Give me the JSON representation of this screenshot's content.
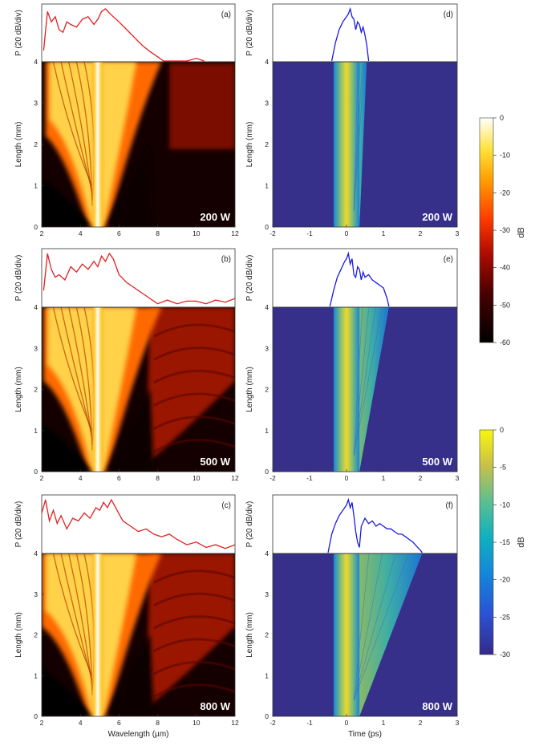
{
  "figure": {
    "colorbars": [
      {
        "label": "dB",
        "ticks": [
          "0",
          "-10",
          "-20",
          "-30",
          "-40",
          "-50",
          "-60"
        ],
        "colormap": "hot"
      },
      {
        "label": "dB",
        "ticks": [
          "0",
          "-5",
          "-10",
          "-15",
          "-20",
          "-25",
          "-30"
        ],
        "colormap": "parula"
      }
    ]
  },
  "chart_data": [
    {
      "type": "heatmap",
      "panel": "(a)",
      "power": "200 W",
      "domain": "spectral",
      "xlabel": "",
      "ylabel": "Length (mm)",
      "top_ylabel": "P (20 dB/div)",
      "xlim": [
        2,
        12
      ],
      "ylim": [
        0,
        4
      ],
      "xticks": [
        "2",
        "4",
        "6",
        "8",
        "10",
        "12"
      ],
      "yticks": [
        "0",
        "1",
        "2",
        "3",
        "4"
      ],
      "spectrum_extent_um": [
        2.2,
        8.4
      ],
      "top_trace": {
        "x": [
          2.1,
          2.3,
          2.5,
          2.7,
          2.9,
          3.1,
          3.3,
          3.5,
          3.8,
          4.1,
          4.4,
          4.7,
          4.9,
          5.1,
          5.3,
          5.5,
          5.7,
          6.0,
          6.4,
          6.8,
          7.2,
          7.6,
          8.0,
          8.3,
          9.5,
          10.0,
          10.4
        ],
        "y": [
          0.2,
          0.95,
          0.75,
          0.85,
          0.6,
          0.55,
          0.75,
          0.7,
          0.65,
          0.8,
          0.85,
          0.7,
          0.8,
          0.95,
          1.0,
          0.92,
          0.85,
          0.75,
          0.6,
          0.45,
          0.3,
          0.18,
          0.08,
          0.0,
          0.0,
          0.05,
          0.0
        ]
      }
    },
    {
      "type": "heatmap",
      "panel": "(b)",
      "power": "500 W",
      "domain": "spectral",
      "xlabel": "",
      "ylabel": "Length (mm)",
      "top_ylabel": "P (20 dB/div)",
      "xlim": [
        2,
        12
      ],
      "ylim": [
        0,
        4
      ],
      "xticks": [
        "2",
        "4",
        "6",
        "8",
        "10",
        "12"
      ],
      "yticks": [
        "0",
        "1",
        "2",
        "3",
        "4"
      ],
      "spectrum_extent_um": [
        2.1,
        12
      ],
      "top_trace": {
        "x": [
          2.1,
          2.3,
          2.5,
          2.7,
          2.9,
          3.2,
          3.5,
          3.8,
          4.1,
          4.4,
          4.7,
          4.9,
          5.1,
          5.3,
          5.5,
          5.7,
          6.0,
          6.4,
          6.8,
          7.2,
          7.6,
          8.0,
          8.5,
          9.0,
          9.5,
          10.0,
          10.5,
          11.0,
          11.5,
          12.0
        ],
        "y": [
          0.3,
          1.0,
          0.7,
          0.55,
          0.6,
          0.5,
          0.75,
          0.65,
          0.8,
          0.7,
          0.85,
          0.75,
          0.95,
          0.85,
          1.0,
          0.9,
          0.6,
          0.45,
          0.35,
          0.25,
          0.15,
          0.05,
          0.12,
          0.05,
          0.1,
          0.1,
          0.05,
          0.12,
          0.08,
          0.15
        ]
      }
    },
    {
      "type": "heatmap",
      "panel": "(c)",
      "power": "800 W",
      "domain": "spectral",
      "xlabel": "Wavelength (µm)",
      "ylabel": "Length (mm)",
      "top_ylabel": "P (20 dB/div)",
      "xlim": [
        2,
        12
      ],
      "ylim": [
        0,
        4
      ],
      "xticks": [
        "2",
        "4",
        "6",
        "8",
        "10",
        "12"
      ],
      "yticks": [
        "0",
        "1",
        "2",
        "3",
        "4"
      ],
      "spectrum_extent_um": [
        2.0,
        12
      ],
      "top_trace": {
        "x": [
          2.0,
          2.2,
          2.4,
          2.6,
          2.8,
          3.0,
          3.3,
          3.6,
          3.9,
          4.2,
          4.5,
          4.8,
          5.0,
          5.2,
          5.4,
          5.6,
          5.9,
          6.2,
          6.6,
          7.0,
          7.4,
          7.8,
          8.2,
          8.6,
          9.0,
          9.5,
          10.0,
          10.5,
          11.0,
          11.5,
          12.0
        ],
        "y": [
          0.75,
          1.0,
          0.6,
          0.8,
          0.55,
          0.7,
          0.45,
          0.65,
          0.6,
          0.75,
          0.65,
          0.85,
          0.8,
          0.95,
          0.85,
          1.0,
          0.8,
          0.6,
          0.5,
          0.4,
          0.45,
          0.35,
          0.3,
          0.35,
          0.25,
          0.15,
          0.2,
          0.1,
          0.15,
          0.08,
          0.15
        ]
      }
    },
    {
      "type": "heatmap",
      "panel": "(d)",
      "power": "200 W",
      "domain": "temporal",
      "xlabel": "",
      "ylabel": "Length (mm)",
      "top_ylabel": "P (20 dB/div)",
      "xlim": [
        -2,
        3
      ],
      "ylim": [
        0,
        4
      ],
      "xticks": [
        "-2",
        "-1",
        "0",
        "1",
        "2",
        "3"
      ],
      "yticks": [
        "0",
        "1",
        "2",
        "3",
        "4"
      ],
      "pulse_extent_ps": [
        -0.35,
        0.55
      ],
      "top_trace": {
        "x": [
          -0.4,
          -0.3,
          -0.2,
          -0.1,
          0.0,
          0.05,
          0.1,
          0.15,
          0.2,
          0.25,
          0.3,
          0.35,
          0.4,
          0.45,
          0.5,
          0.55,
          0.6
        ],
        "y": [
          0.0,
          0.35,
          0.6,
          0.75,
          0.85,
          0.9,
          1.0,
          0.85,
          0.8,
          0.6,
          0.75,
          0.7,
          0.55,
          0.65,
          0.5,
          0.3,
          0.0
        ]
      }
    },
    {
      "type": "heatmap",
      "panel": "(e)",
      "power": "500 W",
      "domain": "temporal",
      "xlabel": "",
      "ylabel": "Length (mm)",
      "top_ylabel": "P (20 dB/div)",
      "xlim": [
        -2,
        3
      ],
      "ylim": [
        0,
        4
      ],
      "xticks": [
        "-2",
        "-1",
        "0",
        "1",
        "2",
        "3"
      ],
      "yticks": [
        "0",
        "1",
        "2",
        "3",
        "4"
      ],
      "pulse_extent_ps": [
        -0.4,
        1.15
      ],
      "top_trace": {
        "x": [
          -0.45,
          -0.35,
          -0.25,
          -0.15,
          -0.05,
          0.0,
          0.05,
          0.1,
          0.15,
          0.2,
          0.25,
          0.3,
          0.35,
          0.4,
          0.45,
          0.5,
          0.6,
          0.7,
          0.8,
          0.9,
          1.0,
          1.1,
          1.15
        ],
        "y": [
          0.0,
          0.3,
          0.55,
          0.7,
          0.85,
          0.9,
          1.0,
          0.8,
          0.9,
          0.6,
          0.55,
          0.75,
          0.7,
          0.5,
          0.65,
          0.55,
          0.6,
          0.5,
          0.45,
          0.4,
          0.35,
          0.15,
          0.0
        ]
      }
    },
    {
      "type": "heatmap",
      "panel": "(f)",
      "power": "800 W",
      "domain": "temporal",
      "xlabel": "Time (ps)",
      "ylabel": "Length (mm)",
      "top_ylabel": "P (20 dB/div)",
      "xlim": [
        -2,
        3
      ],
      "ylim": [
        0,
        4
      ],
      "xticks": [
        "-2",
        "-1",
        "0",
        "1",
        "2",
        "3"
      ],
      "yticks": [
        "0",
        "1",
        "2",
        "3",
        "4"
      ],
      "pulse_extent_ps": [
        -0.45,
        2.05
      ],
      "top_trace": {
        "x": [
          -0.5,
          -0.4,
          -0.3,
          -0.2,
          -0.1,
          0.0,
          0.05,
          0.1,
          0.15,
          0.2,
          0.25,
          0.3,
          0.35,
          0.4,
          0.5,
          0.6,
          0.7,
          0.8,
          0.9,
          1.0,
          1.1,
          1.2,
          1.3,
          1.4,
          1.5,
          1.6,
          1.7,
          1.8,
          1.9,
          2.0,
          2.05
        ],
        "y": [
          0.0,
          0.35,
          0.55,
          0.7,
          0.8,
          0.9,
          1.0,
          0.85,
          0.95,
          0.7,
          0.4,
          0.2,
          0.1,
          0.5,
          0.65,
          0.55,
          0.6,
          0.5,
          0.55,
          0.5,
          0.45,
          0.45,
          0.4,
          0.35,
          0.35,
          0.3,
          0.25,
          0.2,
          0.12,
          0.05,
          0.0
        ]
      }
    }
  ]
}
